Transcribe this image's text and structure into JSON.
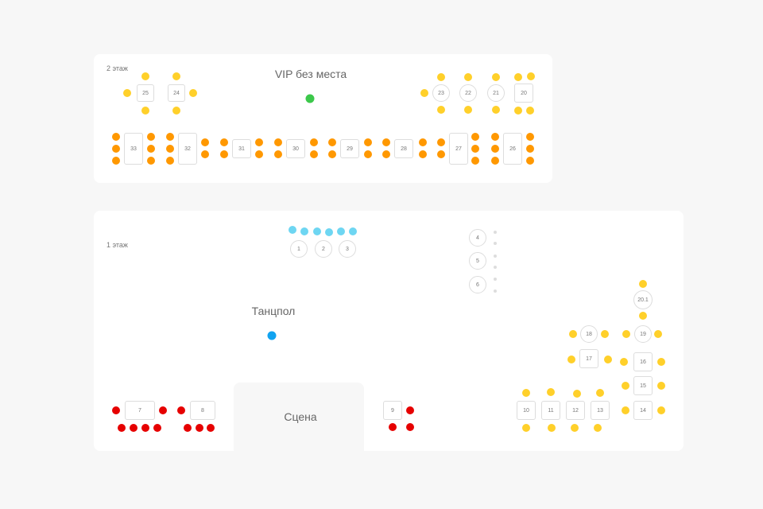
{
  "colors": {
    "yellow": "#FFD02A",
    "orange": "#FF9800",
    "red": "#E60000",
    "cyan": "#6ED6F2",
    "green": "#3CC84B",
    "blue": "#11A3F0"
  },
  "floor2": {
    "label": "2 этаж",
    "vip_label": "VIP без места",
    "tables": [
      "25",
      "24",
      "23",
      "22",
      "21",
      "20",
      "33",
      "32",
      "31",
      "30",
      "29",
      "28",
      "27",
      "26"
    ]
  },
  "floor1": {
    "label": "1 этаж",
    "dance_label": "Танцпол",
    "stage_label": "Сцена",
    "tables": [
      "1",
      "2",
      "3",
      "4",
      "5",
      "6",
      "20.1",
      "18",
      "19",
      "17",
      "16",
      "15",
      "14",
      "10",
      "11",
      "12",
      "13",
      "7",
      "8",
      "9"
    ]
  }
}
